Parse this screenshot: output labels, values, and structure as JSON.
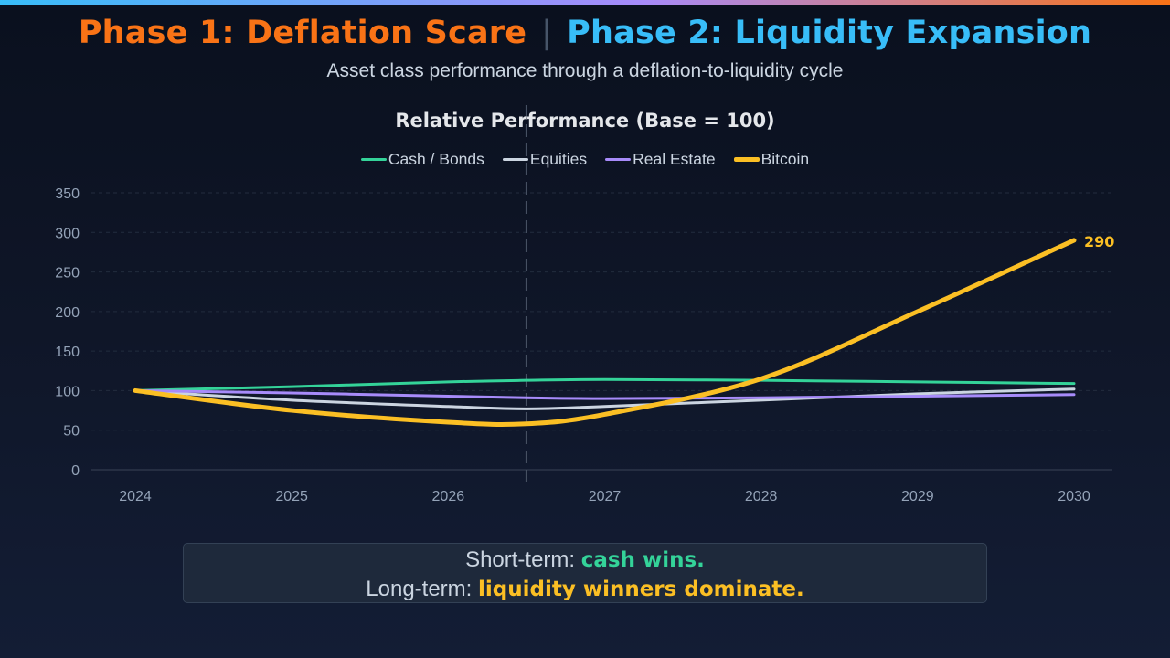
{
  "header": {
    "phase1": "Phase 1: Deflation Scare",
    "separator": "|",
    "phase2": "Phase 2: Liquidity Expansion",
    "subtitle": "Asset class performance through a deflation-to-liquidity cycle"
  },
  "colors": {
    "phase1": "#f97316",
    "phase2": "#38bdf8"
  },
  "chart_data": {
    "type": "line",
    "title": "Relative Performance (Base = 100)",
    "xlabel": "",
    "ylabel": "",
    "xlim": [
      2023.7,
      2030.25
    ],
    "ylim": [
      0,
      350
    ],
    "x_ticks": [
      "2024",
      "2025",
      "2026",
      "2027",
      "2028",
      "2029",
      "2030"
    ],
    "y_ticks": [
      "0",
      "50",
      "100",
      "150",
      "200",
      "250",
      "300",
      "350"
    ],
    "grid": true,
    "legend": "top-center",
    "phase_divider_x": 2026.5,
    "x": [
      2024,
      2025,
      2026,
      2026.5,
      2027,
      2028,
      2029,
      2030
    ],
    "series": [
      {
        "name": "Cash / Bonds",
        "color": "#34d399",
        "width": 3,
        "values": [
          100,
          105,
          111,
          113,
          114,
          113,
          111,
          109
        ]
      },
      {
        "name": "Equities",
        "color": "#cbd5e1",
        "width": 3,
        "values": [
          100,
          88,
          80,
          77,
          80,
          88,
          96,
          102
        ]
      },
      {
        "name": "Real Estate",
        "color": "#a78bfa",
        "width": 3,
        "values": [
          100,
          97,
          93,
          91,
          90,
          91,
          93,
          95
        ]
      },
      {
        "name": "Bitcoin",
        "color": "#fbbf24",
        "width": 5,
        "values": [
          100,
          75,
          60,
          58,
          70,
          115,
          200,
          290
        ]
      }
    ],
    "end_label": "290"
  },
  "callout": {
    "line1_prefix": "Short-term: ",
    "line1_highlight": "cash wins.",
    "line2_prefix": "Long-term: ",
    "line2_highlight": "liquidity winners dominate."
  }
}
